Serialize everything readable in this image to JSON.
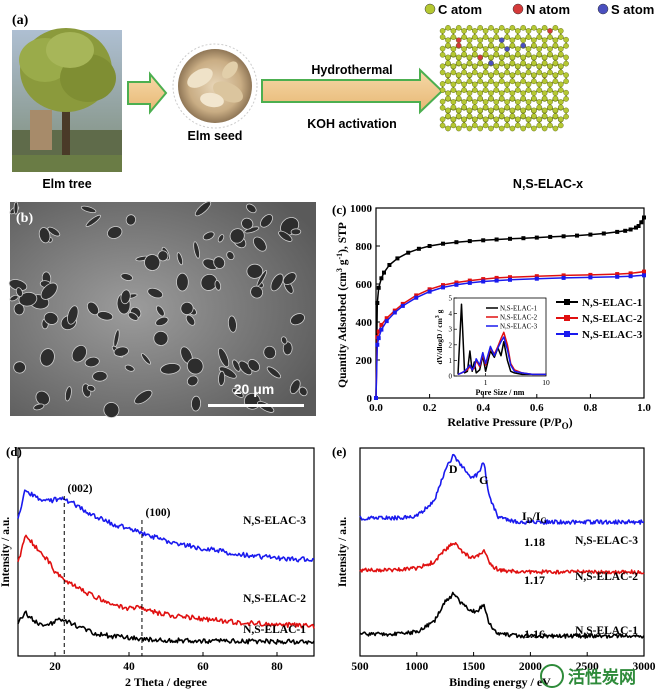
{
  "panel_a": {
    "label": "(a)",
    "elm_tree_label": "Elm tree",
    "elm_seed_label": "Elm seed",
    "hydrothermal_label": "Hydrothermal",
    "koh_label": "KOH activation",
    "product_label": "N,S-ELAC-x",
    "legend": [
      {
        "name": "C atom",
        "color": "#b5c832"
      },
      {
        "name": "N atom",
        "color": "#d43a3a"
      },
      {
        "name": "S atom",
        "color": "#4a4fbf"
      }
    ]
  },
  "panel_b": {
    "label": "(b)",
    "scale_bar": "20 μm"
  },
  "chart_data": [
    {
      "panel": "(c)",
      "type": "line",
      "xlabel": "Relative Pressure (P/P",
      "xlabel_sub": "O",
      "xlabel_end": ")",
      "ylabel": "Quantity Adsorbed (cm",
      "ylabel_sup1": "3",
      "ylabel_mid": " g",
      "ylabel_sup2": "-1",
      "ylabel_end": "), STP",
      "xlim": [
        0,
        1.0
      ],
      "ylim": [
        0,
        1000
      ],
      "xticks": [
        "0.0",
        "0.2",
        "0.4",
        "0.6",
        "0.8",
        "1.0"
      ],
      "yticks": [
        "0",
        "200",
        "400",
        "600",
        "800",
        "1000"
      ],
      "legend_position": "right",
      "series": [
        {
          "name": "N,S-ELAC-1",
          "color": "#000000",
          "x": [
            0.0,
            0.005,
            0.01,
            0.02,
            0.03,
            0.05,
            0.08,
            0.12,
            0.16,
            0.2,
            0.25,
            0.3,
            0.35,
            0.4,
            0.45,
            0.5,
            0.55,
            0.6,
            0.65,
            0.7,
            0.75,
            0.8,
            0.85,
            0.9,
            0.93,
            0.95,
            0.97,
            0.98,
            0.99,
            1.0
          ],
          "y": [
            0,
            500,
            580,
            630,
            660,
            700,
            735,
            765,
            785,
            800,
            812,
            820,
            826,
            830,
            834,
            838,
            841,
            844,
            848,
            851,
            855,
            860,
            866,
            874,
            880,
            887,
            897,
            905,
            925,
            950
          ]
        },
        {
          "name": "N,S-ELAC-2",
          "color": "#e01010",
          "x": [
            0.0,
            0.005,
            0.01,
            0.02,
            0.04,
            0.07,
            0.1,
            0.15,
            0.2,
            0.25,
            0.3,
            0.35,
            0.4,
            0.45,
            0.5,
            0.6,
            0.7,
            0.8,
            0.9,
            0.95,
            1.0
          ],
          "y": [
            0,
            320,
            350,
            385,
            420,
            460,
            495,
            540,
            572,
            594,
            608,
            618,
            626,
            632,
            636,
            641,
            645,
            648,
            652,
            656,
            665
          ]
        },
        {
          "name": "N,S-ELAC-3",
          "color": "#1a1aee",
          "x": [
            0.0,
            0.005,
            0.01,
            0.02,
            0.04,
            0.07,
            0.1,
            0.15,
            0.2,
            0.25,
            0.3,
            0.35,
            0.4,
            0.45,
            0.5,
            0.6,
            0.7,
            0.8,
            0.9,
            0.95,
            1.0
          ],
          "y": [
            0,
            280,
            315,
            360,
            405,
            450,
            485,
            528,
            560,
            582,
            596,
            606,
            613,
            618,
            622,
            628,
            632,
            635,
            638,
            641,
            646
          ]
        }
      ],
      "inset": {
        "xlabel": "Pore Size / nm",
        "ylabel": "dV/dlogD / cm",
        "ylabel_sup": "3",
        "ylabel_end": " g",
        "xscale": "log",
        "xlim": [
          0.3,
          10
        ],
        "ylim": [
          0,
          5
        ],
        "xticks": [
          "1",
          "10"
        ],
        "yticks": [
          "0",
          "1",
          "2",
          "3",
          "4",
          "5"
        ],
        "legend": [
          "N,S-ELAC-1",
          "N,S-ELAC-2",
          "N,S-ELAC-3"
        ],
        "series": [
          {
            "name": "N,S-ELAC-1",
            "color": "#000000",
            "x": [
              0.35,
              0.4,
              0.45,
              0.5,
              0.55,
              0.6,
              0.65,
              0.7,
              0.8,
              0.9,
              1.0,
              1.2,
              1.4,
              1.6,
              1.8,
              2.0,
              2.3,
              2.6,
              3.0,
              4.0,
              6.0,
              10.0
            ],
            "y": [
              0.1,
              4.6,
              0.2,
              0.3,
              1.6,
              0.3,
              0.9,
              0.2,
              0.4,
              1.3,
              0.3,
              1.6,
              1.2,
              1.8,
              1.3,
              2.2,
              1.0,
              0.3,
              0.2,
              0.1,
              0.1,
              0.1
            ]
          },
          {
            "name": "N,S-ELAC-2",
            "color": "#e01010",
            "x": [
              0.35,
              0.4,
              0.45,
              0.5,
              0.55,
              0.6,
              0.65,
              0.7,
              0.8,
              0.9,
              1.0,
              1.2,
              1.4,
              1.6,
              1.8,
              2.0,
              2.3,
              2.6,
              3.0,
              4.0,
              6.0,
              10.0
            ],
            "y": [
              0.1,
              0.2,
              0.3,
              0.4,
              0.6,
              0.4,
              0.5,
              1.0,
              0.6,
              1.4,
              0.7,
              1.8,
              1.4,
              1.9,
              2.4,
              2.8,
              2.0,
              0.8,
              0.4,
              0.2,
              0.1,
              0.1
            ]
          },
          {
            "name": "N,S-ELAC-3",
            "color": "#1a1aee",
            "x": [
              0.35,
              0.4,
              0.45,
              0.5,
              0.55,
              0.6,
              0.65,
              0.7,
              0.8,
              0.9,
              1.0,
              1.2,
              1.4,
              1.6,
              1.8,
              2.0,
              2.3,
              2.6,
              3.0,
              4.0,
              6.0,
              10.0
            ],
            "y": [
              0.1,
              0.2,
              0.3,
              0.5,
              0.7,
              0.4,
              0.6,
              1.1,
              0.7,
              1.5,
              0.8,
              1.9,
              1.3,
              1.8,
              2.2,
              2.5,
              1.7,
              0.7,
              0.3,
              0.2,
              0.1,
              0.1
            ]
          }
        ]
      }
    },
    {
      "panel": "(d)",
      "type": "line",
      "xlabel": "2 Theta /  degree",
      "ylabel": "Intensity / a.u.",
      "xlim": [
        10,
        90
      ],
      "xticks": [
        "20",
        "40",
        "60",
        "80"
      ],
      "annotations": [
        "(002)",
        "(100)"
      ],
      "reference_lines_x": [
        22.5,
        43.5
      ],
      "series": [
        {
          "name": "N,S-ELAC-3",
          "color": "#1a1aee",
          "x": [
            10,
            12,
            15,
            18,
            20,
            22,
            24,
            26,
            30,
            35,
            40,
            45,
            50,
            60,
            70,
            80,
            90
          ],
          "y": [
            0.62,
            0.78,
            0.74,
            0.72,
            0.73,
            0.74,
            0.72,
            0.7,
            0.65,
            0.61,
            0.58,
            0.55,
            0.52,
            0.48,
            0.45,
            0.43,
            0.42
          ]
        },
        {
          "name": "N,S-ELAC-2",
          "color": "#e01010",
          "x": [
            10,
            12,
            15,
            18,
            20,
            22,
            24,
            26,
            30,
            35,
            40,
            43.5,
            45,
            50,
            60,
            70,
            80,
            90
          ],
          "y": [
            0.4,
            0.56,
            0.48,
            0.42,
            0.36,
            0.32,
            0.3,
            0.28,
            0.24,
            0.2,
            0.17,
            0.18,
            0.16,
            0.14,
            0.12,
            0.1,
            0.09,
            0.08
          ]
        },
        {
          "name": "N,S-ELAC-1",
          "color": "#000000",
          "x": [
            10,
            12,
            15,
            18,
            20,
            22,
            24,
            26,
            30,
            35,
            40,
            45,
            50,
            60,
            70,
            80,
            90
          ],
          "y": [
            0.1,
            0.15,
            0.1,
            0.08,
            0.11,
            0.12,
            0.1,
            0.08,
            0.05,
            0.03,
            0.02,
            0.015,
            0.01,
            0.005,
            0.003,
            0.002,
            0.0
          ]
        }
      ]
    },
    {
      "panel": "(e)",
      "type": "line",
      "xlabel": "Binding energy / eV",
      "ylabel": "Intensity / a.u.",
      "xlim": [
        500,
        3000
      ],
      "xticks": [
        "500",
        "1000",
        "1500",
        "2000",
        "2500",
        "3000"
      ],
      "annotations": [
        "D",
        "G"
      ],
      "ratio_label": "I",
      "ratio_sub1": "D",
      "ratio_mid": "/I",
      "ratio_sub2": "G",
      "series": [
        {
          "name": "N,S-ELAC-3",
          "color": "#1a1aee",
          "ratio": "1.18",
          "x": [
            500,
            800,
            1000,
            1150,
            1250,
            1320,
            1400,
            1480,
            1540,
            1590,
            1640,
            1720,
            1900,
            2200,
            2500,
            2800,
            3000
          ],
          "y": [
            0.62,
            0.62,
            0.63,
            0.7,
            0.86,
            0.93,
            0.88,
            0.82,
            0.84,
            0.9,
            0.72,
            0.62,
            0.6,
            0.6,
            0.6,
            0.6,
            0.6
          ]
        },
        {
          "name": "N,S-ELAC-2",
          "color": "#e01010",
          "ratio": "1.17",
          "x": [
            500,
            800,
            1000,
            1150,
            1250,
            1320,
            1400,
            1480,
            1540,
            1590,
            1640,
            1720,
            1900,
            2200,
            2500,
            2800,
            3000
          ],
          "y": [
            0.36,
            0.36,
            0.37,
            0.4,
            0.46,
            0.5,
            0.45,
            0.42,
            0.43,
            0.46,
            0.39,
            0.36,
            0.35,
            0.35,
            0.35,
            0.35,
            0.35
          ]
        },
        {
          "name": "N,S-ELAC-1",
          "color": "#000000",
          "ratio": "1.16",
          "x": [
            500,
            800,
            1000,
            1150,
            1250,
            1320,
            1400,
            1480,
            1540,
            1590,
            1640,
            1720,
            1900,
            2200,
            2500,
            2800,
            3000
          ],
          "y": [
            0.04,
            0.04,
            0.05,
            0.1,
            0.2,
            0.24,
            0.19,
            0.15,
            0.16,
            0.19,
            0.09,
            0.04,
            0.03,
            0.03,
            0.03,
            0.03,
            0.03
          ]
        }
      ]
    }
  ],
  "watermark": "活性炭网"
}
